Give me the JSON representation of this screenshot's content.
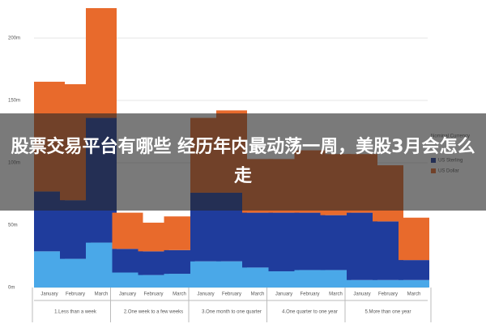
{
  "chart_data": {
    "type": "stacked_bar",
    "title": "股票交易平台有哪些 经历年内最动荡一周，美股3月会怎么走",
    "categories": [
      "January",
      "February",
      "March",
      "January",
      "February",
      "March",
      "January",
      "February",
      "March",
      "January",
      "February",
      "March",
      "January",
      "February",
      "March"
    ],
    "groups": [
      "1.Less than a week",
      "2.One week to a few weeks",
      "3.One month to one quarter",
      "4.One quarter to one year",
      "5.More than one year"
    ],
    "legend_title": "Nominal Currency",
    "series": [
      {
        "color": "#4aa8e8",
        "values": [
          29,
          23,
          36,
          12,
          10,
          11,
          21,
          21,
          16,
          13,
          14,
          14,
          6,
          6,
          6
        ]
      },
      {
        "name": "US Sterling",
        "color": "#1f3c9c",
        "values": [
          48,
          47,
          100,
          19,
          19,
          19,
          55,
          55,
          44,
          47,
          46,
          44,
          54,
          47,
          16
        ]
      },
      {
        "name": "US Dollar",
        "color": "#e86a2c",
        "values": [
          88,
          93,
          88,
          29,
          23,
          27,
          60,
          66,
          43,
          43,
          50,
          49,
          47,
          45,
          34
        ]
      }
    ],
    "ylim": [
      0,
      225
    ],
    "yticks": [
      {
        "value": 0,
        "label": "0m"
      },
      {
        "value": 50,
        "label": "50m"
      },
      {
        "value": 100,
        "label": "100m"
      },
      {
        "value": 150,
        "label": "150m"
      },
      {
        "value": 200,
        "label": "200m"
      }
    ],
    "grid": true
  }
}
